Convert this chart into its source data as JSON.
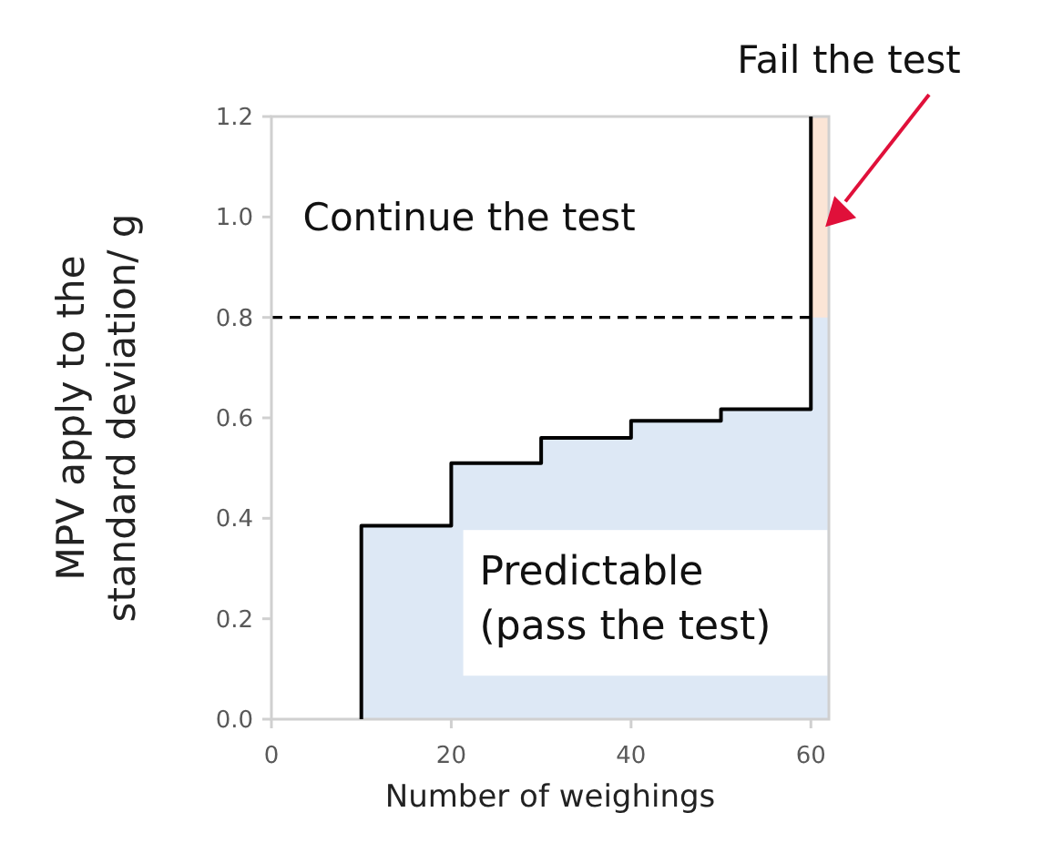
{
  "chart_data": {
    "type": "line",
    "xlabel": "Number of weighings",
    "ylabel": "MPV apply to the\nstandard deviation/ g",
    "xlim": [
      0,
      62
    ],
    "xticks": [
      0,
      20,
      40,
      60
    ],
    "ylim": [
      0,
      1.2
    ],
    "yticks": [
      {
        "value": 0,
        "label": "0.0"
      },
      {
        "value": 0.2,
        "label": "0.2"
      },
      {
        "value": 0.4,
        "label": "0.4"
      },
      {
        "value": 0.6,
        "label": "0.6"
      },
      {
        "value": 0.8,
        "label": "0.8"
      },
      {
        "value": 1,
        "label": "1.0"
      },
      {
        "value": 1.2,
        "label": "1.2"
      }
    ],
    "grid": false,
    "series": [
      {
        "type": "area",
        "color": "#dde8f5",
        "x": [
          10,
          10,
          20,
          20,
          30,
          30,
          40,
          40,
          50,
          50,
          60,
          60,
          62
        ],
        "values": [
          0,
          0.385,
          0.385,
          0.51,
          0.51,
          0.56,
          0.56,
          0.594,
          0.594,
          0.617,
          0.617,
          0.8,
          0.8
        ]
      },
      {
        "type": "area",
        "color": "#fbe5d6",
        "x": [
          60,
          62
        ],
        "values": [
          1.2,
          1.2
        ]
      },
      {
        "color": "#000000",
        "x": [
          10,
          10,
          20,
          20,
          30,
          30,
          40,
          40,
          50,
          50,
          60,
          60
        ],
        "values": [
          0,
          0.385,
          0.385,
          0.51,
          0.51,
          0.56,
          0.56,
          0.594,
          0.594,
          0.617,
          0.617,
          1.2
        ]
      }
    ],
    "ref_lines": [
      {
        "axis": "y",
        "value": 0.8,
        "color": "#000000",
        "line_style": "dashed"
      }
    ],
    "annotations": [
      "Continue the test",
      "Predictable\n(pass the test)",
      "Fail the test"
    ]
  }
}
